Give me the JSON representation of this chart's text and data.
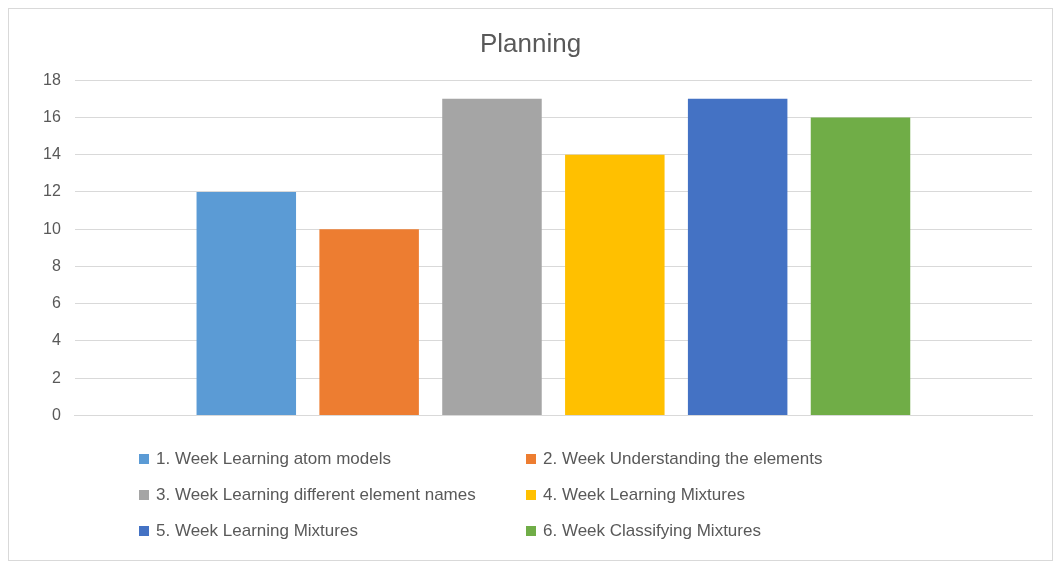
{
  "chart_data": {
    "type": "bar",
    "title": "Planning",
    "categories": [
      null
    ],
    "series": [
      {
        "name": "1. Week Learning atom models",
        "color": "#5b9bd5",
        "values": [
          12
        ]
      },
      {
        "name": "2. Week Understanding the elements",
        "color": "#ed7d31",
        "values": [
          10
        ]
      },
      {
        "name": "3. Week Learning different element names",
        "color": "#a5a5a5",
        "values": [
          17
        ]
      },
      {
        "name": "4. Week Learning Mixtures",
        "color": "#ffc000",
        "values": [
          14
        ]
      },
      {
        "name": "5. Week Learning Mixtures",
        "color": "#4472c4",
        "values": [
          17
        ]
      },
      {
        "name": "6. Week Classifying Mixtures",
        "color": "#70ad47",
        "values": [
          16
        ]
      }
    ],
    "ylim": [
      0,
      18
    ],
    "yticks": [
      0,
      2,
      4,
      6,
      8,
      10,
      12,
      14,
      16,
      18
    ],
    "grid": "y",
    "legend": "bottom"
  }
}
